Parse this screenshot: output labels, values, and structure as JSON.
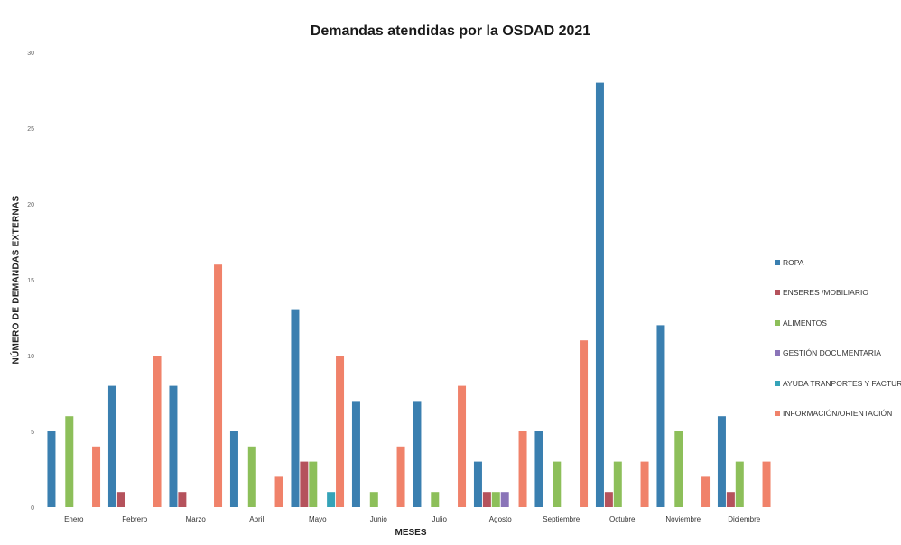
{
  "chart_data": {
    "type": "bar",
    "title": "Demandas atendidas por la OSDAD 2021",
    "xlabel": "MESES",
    "ylabel": "NÚMERO DE DEMANDAS EXTERNAS",
    "ylim": [
      0,
      30
    ],
    "yticks": [
      0,
      5,
      10,
      15,
      20,
      25,
      30
    ],
    "grid": false,
    "legend_position": "right",
    "categories": [
      "Enero",
      "Febrero",
      "Marzo",
      "Abril",
      "Mayo",
      "Junio",
      "Julio",
      "Agosto",
      "Septiembre",
      "Octubre",
      "Noviembre",
      "Diciembre"
    ],
    "series": [
      {
        "name": "ROPA",
        "color": "#3a7fb0",
        "values": [
          5,
          8,
          8,
          5,
          13,
          7,
          7,
          3,
          5,
          28,
          12,
          6
        ]
      },
      {
        "name": "ENSERES /MOBILIARIO",
        "color": "#b5525c",
        "values": [
          0,
          1,
          1,
          0,
          3,
          0,
          0,
          1,
          0,
          1,
          0,
          1
        ]
      },
      {
        "name": "ALIMENTOS",
        "color": "#8dbf5a",
        "values": [
          6,
          0,
          0,
          4,
          3,
          1,
          1,
          1,
          3,
          3,
          5,
          3
        ]
      },
      {
        "name": "GESTIÓN DOCUMENTARIA",
        "color": "#8a74b8",
        "values": [
          0,
          0,
          0,
          0,
          0,
          0,
          0,
          1,
          0,
          0,
          0,
          0
        ]
      },
      {
        "name": "AYUDA TRANPORTES Y FACTURAS",
        "color": "#35a3b8",
        "values": [
          0,
          0,
          0,
          0,
          1,
          0,
          0,
          0,
          0,
          0,
          0,
          0
        ]
      },
      {
        "name": "INFORMACIÓN/ORIENTACIÓN",
        "color": "#f0826a",
        "values": [
          4,
          10,
          16,
          2,
          10,
          4,
          8,
          5,
          11,
          3,
          2,
          3
        ]
      }
    ]
  }
}
